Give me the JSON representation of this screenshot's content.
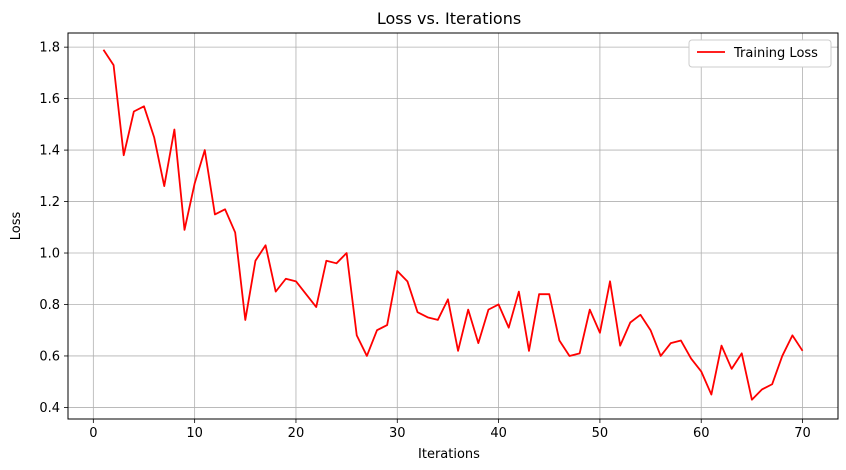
{
  "chart_data": {
    "type": "line",
    "title": "Loss vs. Iterations",
    "xlabel": "Iterations",
    "ylabel": "Loss",
    "xlim": [
      -2.5,
      73.5
    ],
    "ylim": [
      0.355,
      1.855
    ],
    "xticks": [
      0,
      10,
      20,
      30,
      40,
      50,
      60,
      70
    ],
    "yticks": [
      0.4,
      0.6,
      0.8,
      1.0,
      1.2,
      1.4,
      1.6,
      1.8
    ],
    "xtick_labels": [
      "0",
      "10",
      "20",
      "30",
      "40",
      "50",
      "60",
      "70"
    ],
    "ytick_labels": [
      "0.4",
      "0.6",
      "0.8",
      "1.0",
      "1.2",
      "1.4",
      "1.6",
      "1.8"
    ],
    "grid": true,
    "legend_position": "top-right",
    "series": [
      {
        "name": "Training Loss",
        "color": "#ff0000",
        "x": [
          1,
          2,
          3,
          4,
          5,
          6,
          7,
          8,
          9,
          10,
          11,
          12,
          13,
          14,
          15,
          16,
          17,
          18,
          19,
          20,
          21,
          22,
          23,
          24,
          25,
          26,
          27,
          28,
          29,
          30,
          31,
          32,
          33,
          34,
          35,
          36,
          37,
          38,
          39,
          40,
          41,
          42,
          43,
          44,
          45,
          46,
          47,
          48,
          49,
          50,
          51,
          52,
          53,
          54,
          55,
          56,
          57,
          58,
          59,
          60,
          61,
          62,
          63,
          64,
          65,
          66,
          67,
          68,
          69,
          70
        ],
        "y": [
          1.79,
          1.73,
          1.38,
          1.55,
          1.57,
          1.45,
          1.26,
          1.48,
          1.09,
          1.27,
          1.4,
          1.15,
          1.17,
          1.08,
          0.74,
          0.97,
          1.03,
          0.85,
          0.9,
          0.89,
          0.84,
          0.79,
          0.97,
          0.96,
          1.0,
          0.68,
          0.6,
          0.7,
          0.72,
          0.93,
          0.89,
          0.77,
          0.75,
          0.74,
          0.82,
          0.62,
          0.78,
          0.65,
          0.78,
          0.8,
          0.71,
          0.85,
          0.62,
          0.84,
          0.84,
          0.66,
          0.6,
          0.61,
          0.78,
          0.69,
          0.89,
          0.64,
          0.73,
          0.76,
          0.7,
          0.6,
          0.65,
          0.66,
          0.59,
          0.54,
          0.45,
          0.64,
          0.55,
          0.61,
          0.43,
          0.47,
          0.49,
          0.6,
          0.68,
          0.62
        ]
      }
    ]
  }
}
